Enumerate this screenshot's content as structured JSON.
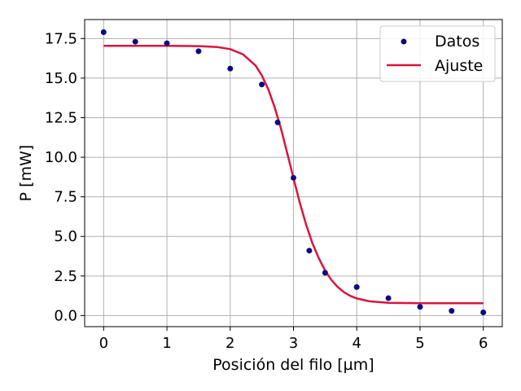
{
  "chart_data": {
    "type": "scatter",
    "xlabel": "Posición del filo [µm]",
    "ylabel": "P [mW]",
    "xlim": [
      -0.3,
      6.3
    ],
    "ylim": [
      -0.7,
      18.7
    ],
    "xticks": [
      0,
      1,
      2,
      3,
      4,
      5,
      6
    ],
    "xtick_labels": [
      "0",
      "1",
      "2",
      "3",
      "4",
      "5",
      "6"
    ],
    "yticks": [
      0,
      2.5,
      5,
      7.5,
      10,
      12.5,
      15,
      17.5
    ],
    "ytick_labels": [
      "0.0",
      "2.5",
      "5.0",
      "7.5",
      "10.0",
      "12.5",
      "15.0",
      "17.5"
    ],
    "grid": true,
    "legend_position": "top-right",
    "colors": {
      "data": "#0b0b80",
      "fit": "#dc143c",
      "grid": "#b0b0b0"
    },
    "series": [
      {
        "name": "Datos",
        "kind": "scatter",
        "x": [
          0,
          0.5,
          1,
          1.5,
          2,
          2.5,
          2.75,
          3,
          3.25,
          3.5,
          4,
          4.5,
          5,
          5.5,
          6
        ],
        "y": [
          17.9,
          17.3,
          17.2,
          16.7,
          15.6,
          14.6,
          12.2,
          8.7,
          4.1,
          2.7,
          1.8,
          1.1,
          0.55,
          0.3,
          0.2
        ]
      },
      {
        "name": "Ajuste",
        "kind": "line",
        "x": [
          0,
          0.5,
          1,
          1.5,
          1.8,
          2,
          2.2,
          2.4,
          2.5,
          2.6,
          2.7,
          2.8,
          2.9,
          3,
          3.1,
          3.2,
          3.3,
          3.4,
          3.5,
          3.6,
          3.7,
          3.8,
          3.9,
          4,
          4.2,
          4.5,
          5,
          5.5,
          6
        ],
        "y": [
          17.04,
          17.04,
          17.04,
          17.02,
          16.96,
          16.83,
          16.51,
          15.8,
          15.17,
          14.31,
          13.19,
          11.84,
          10.29,
          8.68,
          7.12,
          5.75,
          4.57,
          3.62,
          2.84,
          2.25,
          1.8,
          1.47,
          1.24,
          1.08,
          0.9,
          0.81,
          0.78,
          0.78,
          0.78
        ]
      }
    ]
  }
}
